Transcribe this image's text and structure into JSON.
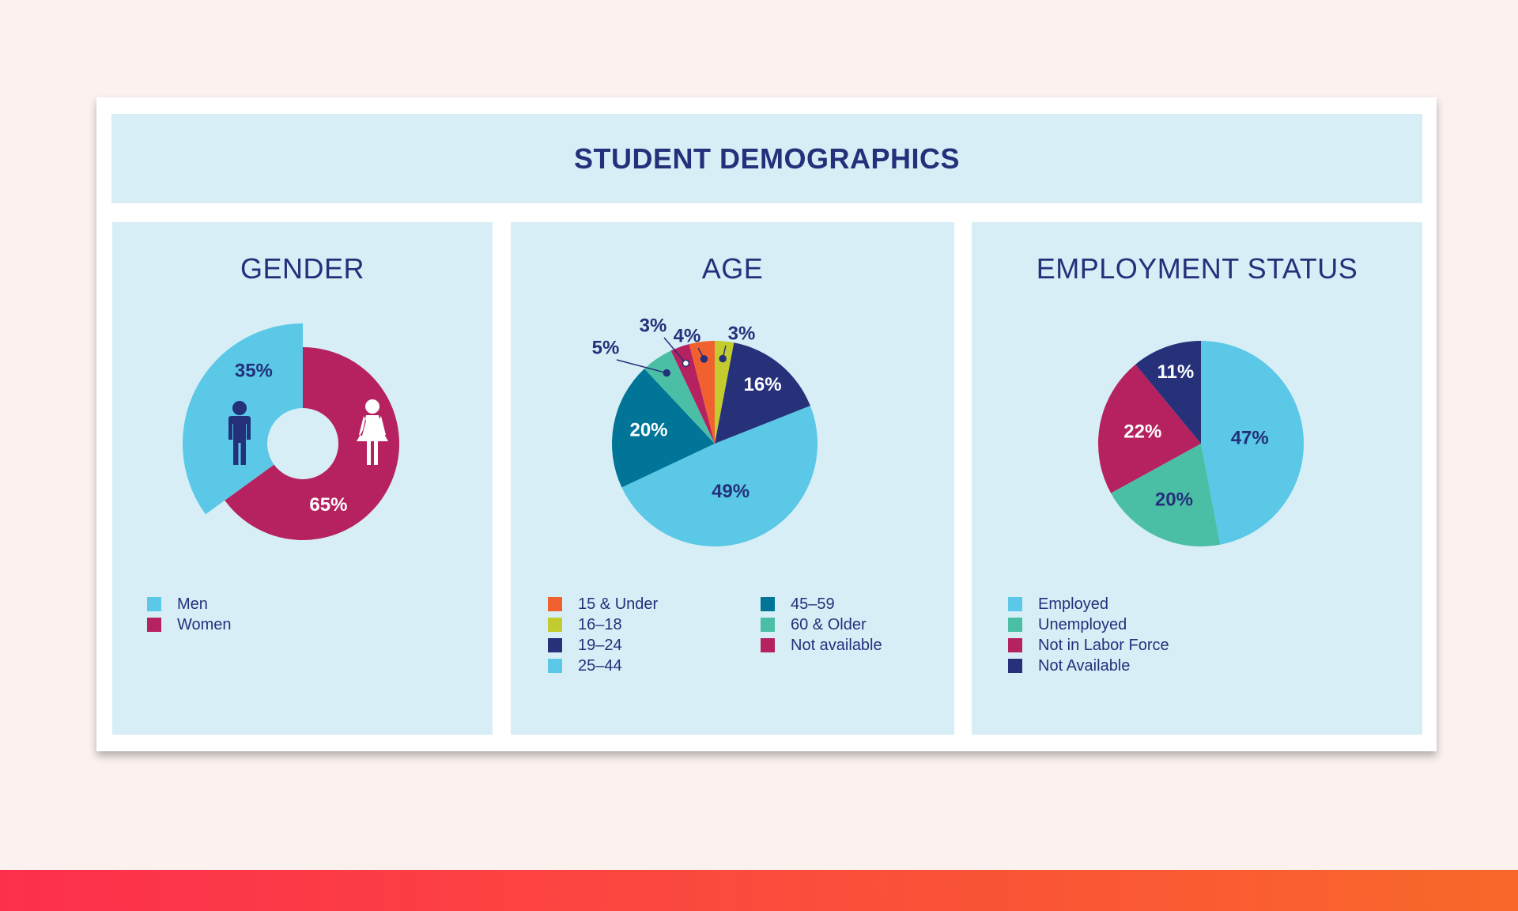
{
  "title": "STUDENT DEMOGRAPHICS",
  "colors": {
    "background": "#fbf1ef",
    "panel": "#d7eef6",
    "navy": "#24307a",
    "footer_start": "#fd2f4d",
    "footer_end": "#f9682a"
  },
  "chart_data": [
    {
      "type": "pie",
      "title": "GENDER",
      "labels": [
        "Men",
        "Women"
      ],
      "values": [
        35,
        65
      ],
      "value_labels": [
        "35%",
        "65%"
      ],
      "colors": [
        "#5ac8e6",
        "#b6225f"
      ],
      "icons": [
        "man-icon",
        "woman-icon"
      ],
      "legend": "bottom-left"
    },
    {
      "type": "pie",
      "title": "AGE",
      "labels": [
        "15 & Under",
        "16–18",
        "19–24",
        "25–44",
        "45–59",
        "60 & Older",
        "Not available"
      ],
      "values": [
        4,
        3,
        16,
        49,
        20,
        5,
        3
      ],
      "value_labels": [
        "4%",
        "3%",
        "16%",
        "49%",
        "20%",
        "5%",
        "3%"
      ],
      "colors": [
        "#f0612f",
        "#c2cc2f",
        "#26317a",
        "#5ac8e6",
        "#007597",
        "#4bbfa6",
        "#b6225f"
      ],
      "legend": "bottom"
    },
    {
      "type": "pie",
      "title": "EMPLOYMENT STATUS",
      "labels": [
        "Employed",
        "Unemployed",
        "Not in Labor Force",
        "Not Available"
      ],
      "values": [
        47,
        20,
        22,
        11
      ],
      "value_labels": [
        "47%",
        "20%",
        "22%",
        "11%"
      ],
      "colors": [
        "#5ac8e6",
        "#4bbfa6",
        "#b6225f",
        "#26317a"
      ],
      "legend": "bottom-left"
    }
  ]
}
